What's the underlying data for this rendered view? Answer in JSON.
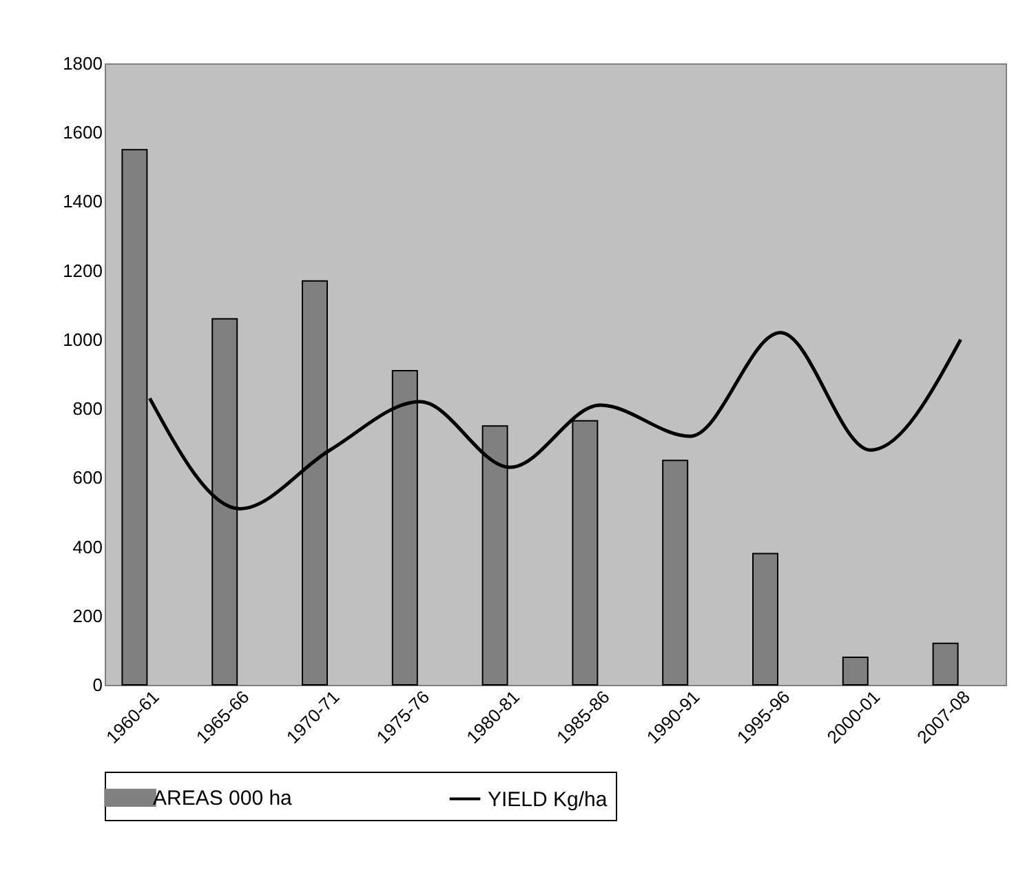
{
  "chart_data": {
    "type": "bar",
    "categories": [
      "1960-61",
      "1965-66",
      "1970-71",
      "1975-76",
      "1980-81",
      "1985-86",
      "1990-91",
      "1995-96",
      "2000-01",
      "2007-08"
    ],
    "series": [
      {
        "name": "AREAS 000 ha",
        "color": "#808080",
        "values": [
          1550,
          1060,
          1170,
          910,
          750,
          765,
          650,
          380,
          80,
          120
        ]
      },
      {
        "name": "YIELD Kg/ha",
        "type": "line",
        "color": "#000000",
        "values": [
          830,
          510,
          680,
          820,
          630,
          810,
          720,
          1020,
          680,
          1000
        ]
      }
    ],
    "ylim": [
      0,
      1800
    ],
    "yticks": [
      0,
      200,
      400,
      600,
      800,
      1000,
      1200,
      1400,
      1600,
      1800
    ],
    "grid": false,
    "legend": "bottom",
    "marker": "none",
    "line_style": "solid"
  }
}
